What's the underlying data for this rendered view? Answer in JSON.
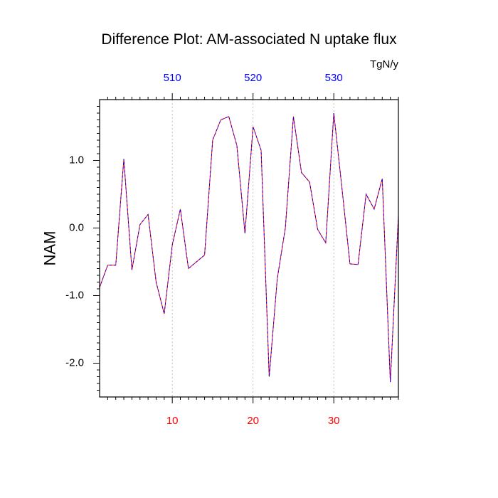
{
  "chart_data": {
    "type": "line",
    "title": "Difference Plot: AM-associated N uptake flux",
    "units_label": "TgN/y",
    "ylabel": "NAM",
    "xlim": [
      1,
      38
    ],
    "ylim": [
      -2.5,
      1.9
    ],
    "x": [
      1,
      2,
      3,
      4,
      5,
      6,
      7,
      8,
      9,
      10,
      11,
      12,
      13,
      14,
      15,
      16,
      17,
      18,
      19,
      20,
      21,
      22,
      23,
      24,
      25,
      26,
      27,
      28,
      29,
      30,
      31,
      32,
      33,
      34,
      35,
      36,
      37,
      38
    ],
    "series": [
      {
        "values": [
          -0.88,
          -0.55,
          -0.55,
          1.02,
          -0.62,
          0.05,
          0.2,
          -0.8,
          -1.27,
          -0.25,
          0.28,
          -0.6,
          -0.5,
          -0.4,
          1.3,
          1.6,
          1.65,
          1.22,
          -0.08,
          1.5,
          1.15,
          -2.2,
          -0.75,
          0.0,
          1.65,
          0.82,
          0.68,
          -0.02,
          -0.22,
          1.7,
          0.6,
          -0.53,
          -0.54,
          0.5,
          0.28,
          0.73,
          -2.28,
          0.18
        ],
        "colors": [
          "#ff0000",
          "#0000ff"
        ]
      }
    ],
    "bottom_axis": {
      "ticks": [
        10,
        20,
        30
      ],
      "labels": [
        "10",
        "20",
        "30"
      ],
      "color": "#ff0000"
    },
    "top_axis": {
      "ticks": [
        10,
        20,
        30
      ],
      "labels": [
        "510",
        "520",
        "530"
      ],
      "color": "#0000ff"
    },
    "left_axis": {
      "ticks": [
        1.0,
        0.0,
        -1.0,
        -2.0
      ],
      "labels": [
        "1.0",
        "0.0",
        "-1.0",
        "-2.0"
      ],
      "color": "#000000"
    },
    "grid": "vertical dotted at major x ticks"
  }
}
